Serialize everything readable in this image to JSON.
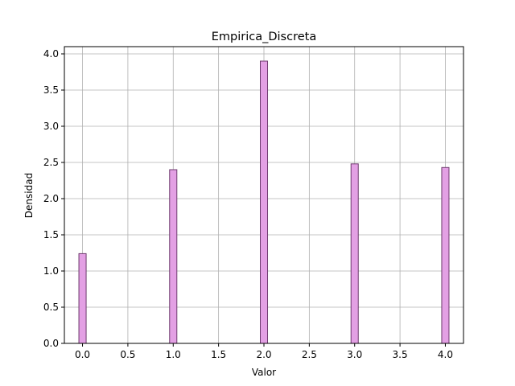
{
  "chart_data": {
    "type": "bar",
    "title": "Empirica_Discreta",
    "xlabel": "Valor",
    "ylabel": "Densidad",
    "x": [
      0,
      1,
      2,
      3,
      4
    ],
    "values": [
      1.24,
      2.4,
      3.9,
      2.48,
      2.43
    ],
    "bar_width": 0.08,
    "xlim": [
      -0.2,
      4.2
    ],
    "ylim": [
      0,
      4.1
    ],
    "xticks": [
      0.0,
      0.5,
      1.0,
      1.5,
      2.0,
      2.5,
      3.0,
      3.5,
      4.0
    ],
    "xtick_labels": [
      "0.0",
      "0.5",
      "1.0",
      "1.5",
      "2.0",
      "2.5",
      "3.0",
      "3.5",
      "4.0"
    ],
    "yticks": [
      0.0,
      0.5,
      1.0,
      1.5,
      2.0,
      2.5,
      3.0,
      3.5,
      4.0
    ],
    "ytick_labels": [
      "0.0",
      "0.5",
      "1.0",
      "1.5",
      "2.0",
      "2.5",
      "3.0",
      "3.5",
      "4.0"
    ],
    "grid": true,
    "colors": {
      "bar_fill": "#e3a0e4",
      "bar_edge": "#6e3a6e",
      "grid": "#b0b0b0"
    }
  }
}
